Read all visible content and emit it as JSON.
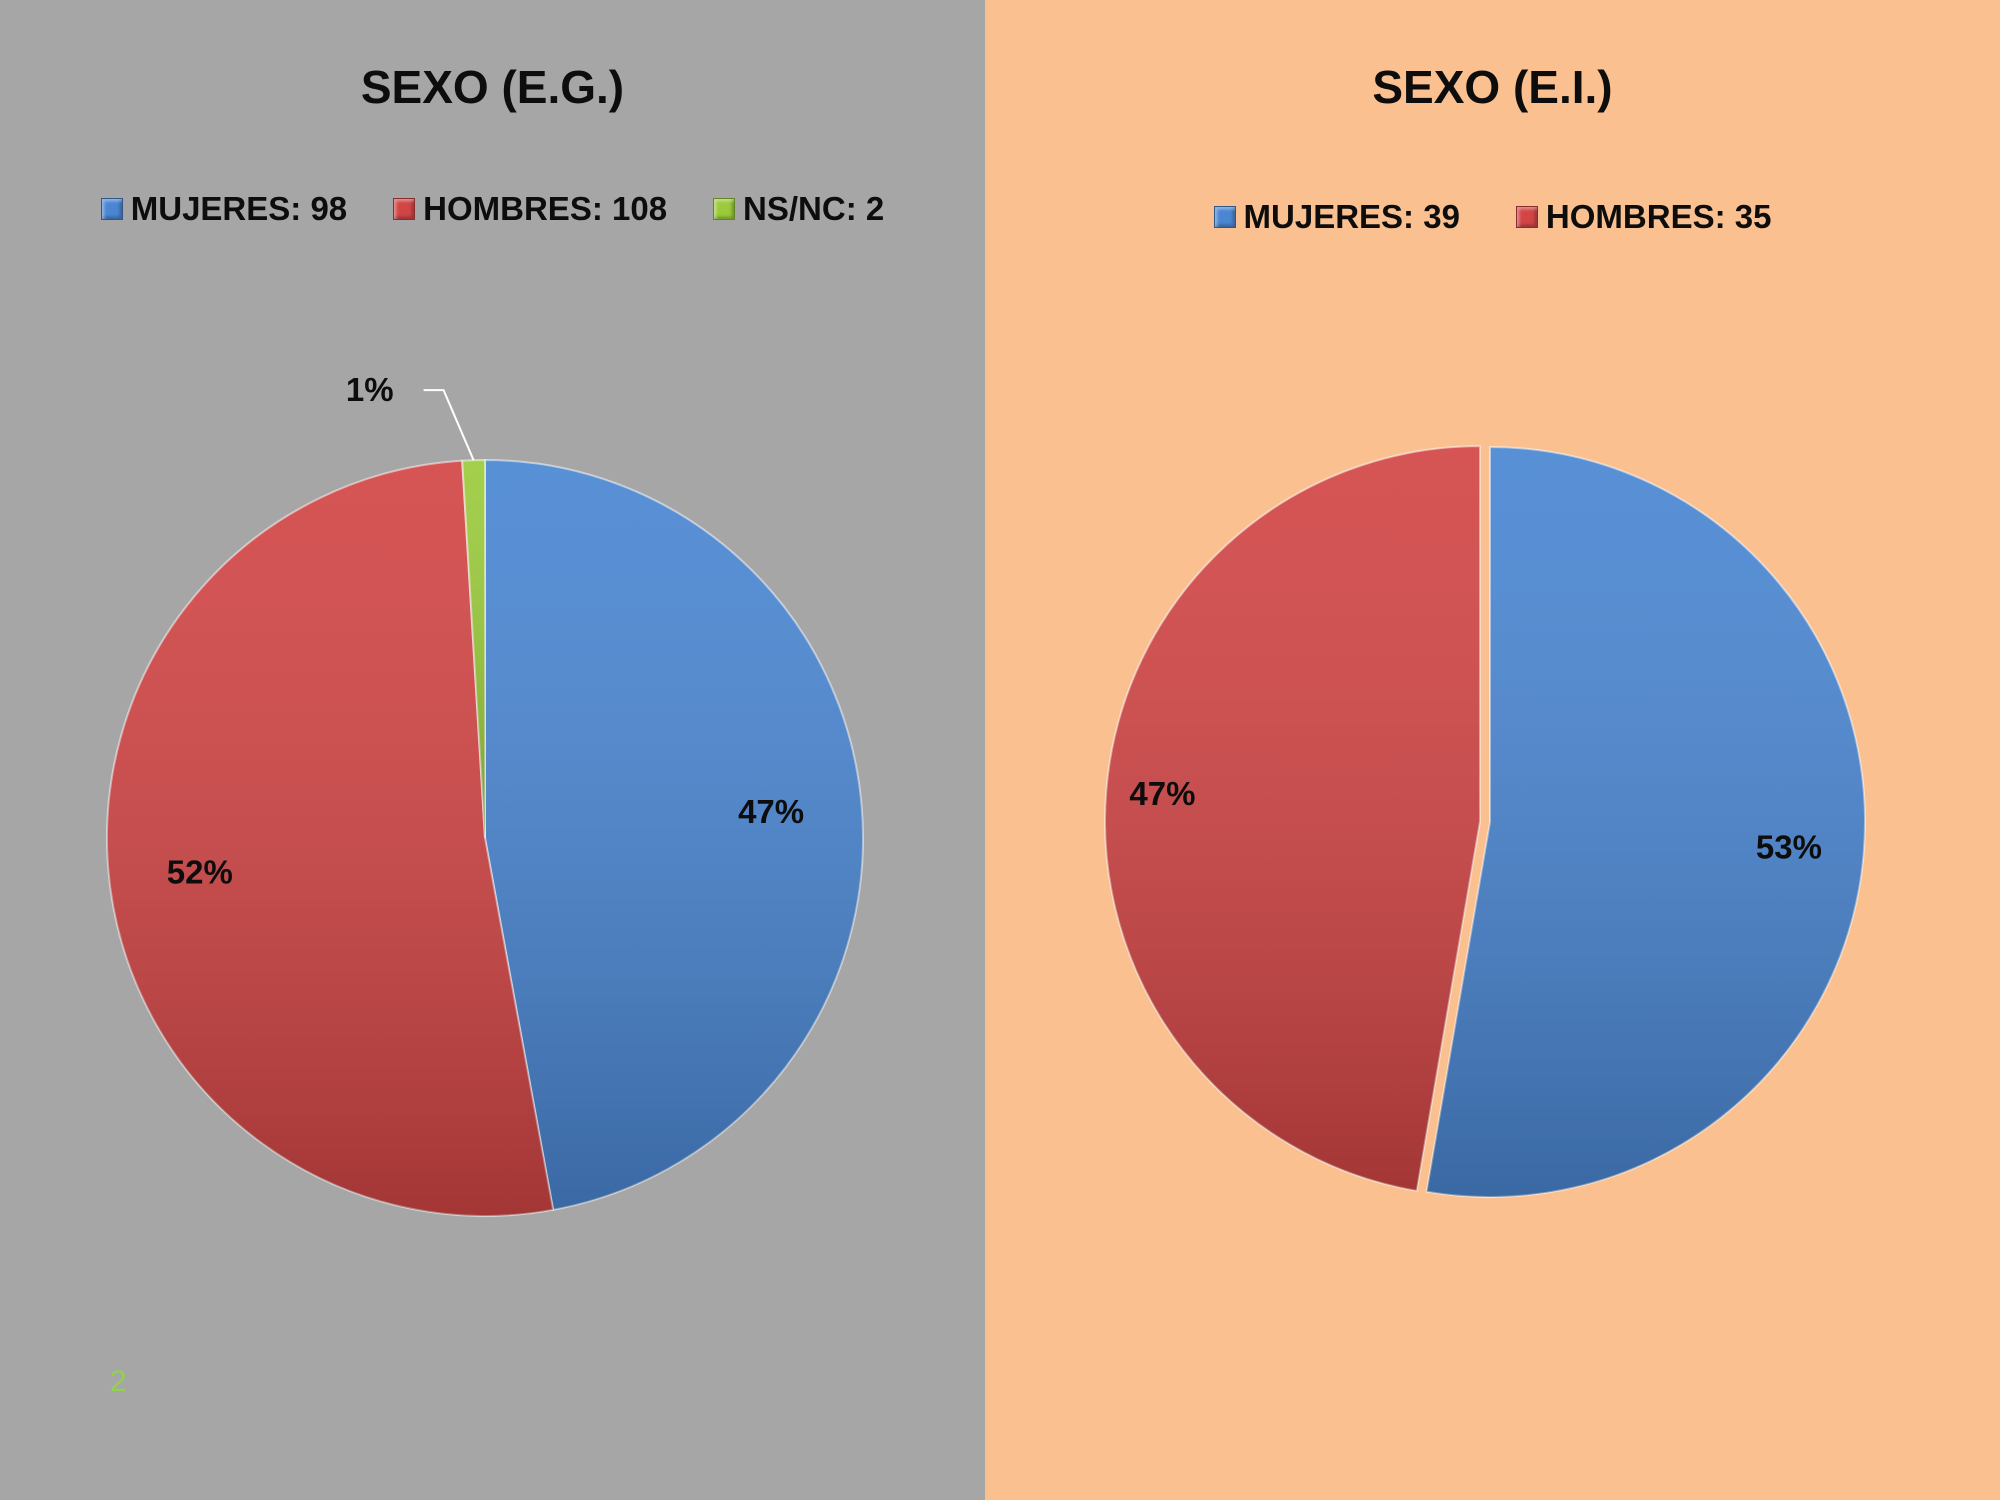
{
  "colors": {
    "left_background": "#a6a6a6",
    "right_background": "#fac090",
    "mujeres": "#4a86d2",
    "hombres": "#d24545",
    "nsnc": "#9bcb3c",
    "page_number": "#92d050"
  },
  "page_number": "2",
  "chart_data": [
    {
      "type": "pie",
      "title": "SEXO (E.G.)",
      "legend_position": "top",
      "series": [
        {
          "name": "MUJERES: 98",
          "value": 98,
          "percent_label": "47%",
          "color": "#4a86d2"
        },
        {
          "name": "HOMBRES: 108",
          "value": 108,
          "percent_label": "52%",
          "color": "#d24545"
        },
        {
          "name": "NS/NC: 2",
          "value": 2,
          "percent_label": "1%",
          "color": "#9bcb3c"
        }
      ]
    },
    {
      "type": "pie",
      "title": "SEXO (E.I.)",
      "legend_position": "top",
      "series": [
        {
          "name": "MUJERES: 39",
          "value": 39,
          "percent_label": "53%",
          "color": "#4a86d2"
        },
        {
          "name": "HOMBRES: 35",
          "value": 35,
          "percent_label": "47%",
          "color": "#d24545"
        }
      ]
    }
  ]
}
